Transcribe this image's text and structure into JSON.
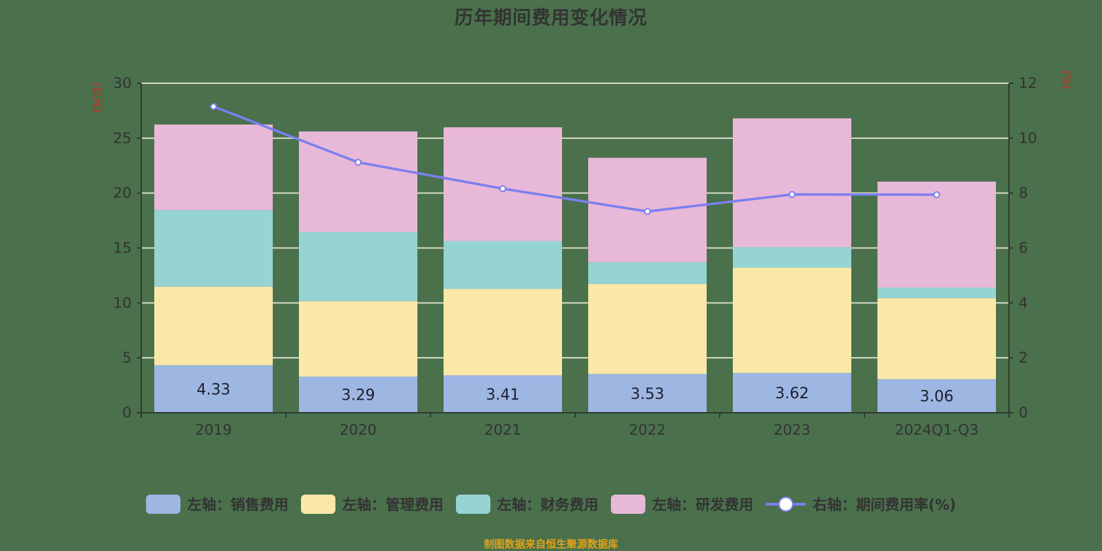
{
  "title": "历年期间费用变化情况",
  "footer": "制图数据来自恒生聚源数据库",
  "colors": {
    "background": "#4a704c",
    "sales": "#9db6e2",
    "management": "#fae8a8",
    "finance": "#96d3d3",
    "rnd": "#e8b8d8",
    "rate_line": "#7b7ff0",
    "gridline": "#d8dcc8",
    "axis": "#2f3a2f",
    "unit_text": "#d9261c"
  },
  "legend": [
    {
      "label": "左轴：销售费用",
      "key": "sales",
      "type": "bar"
    },
    {
      "label": "左轴：管理费用",
      "key": "management",
      "type": "bar"
    },
    {
      "label": "左轴：财务费用",
      "key": "finance",
      "type": "bar"
    },
    {
      "label": "左轴：研发费用",
      "key": "rnd",
      "type": "bar"
    },
    {
      "label": "右轴：期间费用率(%)",
      "key": "rate_line",
      "type": "line"
    }
  ],
  "chart_data": {
    "type": "bar",
    "stacked": true,
    "title": "历年期间费用变化情况",
    "categories": [
      "2019",
      "2020",
      "2021",
      "2022",
      "2023",
      "2024Q1-Q3"
    ],
    "series": [
      {
        "name": "左轴：销售费用",
        "axis": "left",
        "type": "bar",
        "values": [
          4.33,
          3.29,
          3.41,
          3.53,
          3.62,
          3.06
        ],
        "data_labels": [
          "4.33",
          "3.29",
          "3.41",
          "3.53",
          "3.62",
          "3.06"
        ]
      },
      {
        "name": "左轴：管理费用",
        "axis": "left",
        "type": "bar",
        "values": [
          7.15,
          6.87,
          7.86,
          8.2,
          9.59,
          7.38
        ]
      },
      {
        "name": "左轴：财务费用",
        "axis": "left",
        "type": "bar",
        "values": [
          6.97,
          6.31,
          4.36,
          1.98,
          1.88,
          0.96
        ]
      },
      {
        "name": "左轴：研发费用",
        "axis": "left",
        "type": "bar",
        "values": [
          7.79,
          9.14,
          10.36,
          9.5,
          11.71,
          9.64
        ]
      },
      {
        "name": "右轴：期间费用率(%)",
        "axis": "right",
        "type": "line",
        "values": [
          11.15,
          9.12,
          8.16,
          7.33,
          7.95,
          7.94
        ]
      }
    ],
    "left_axis": {
      "unit": "(亿元)",
      "ylim": [
        0,
        30
      ],
      "ticks": [
        0,
        5,
        10,
        15,
        20,
        25,
        30
      ]
    },
    "right_axis": {
      "unit": "(%)",
      "ylim": [
        0,
        12
      ],
      "ticks": [
        0,
        2,
        4,
        6,
        8,
        10,
        12
      ]
    },
    "xlabel": "",
    "grid": true,
    "legend_position": "bottom"
  }
}
